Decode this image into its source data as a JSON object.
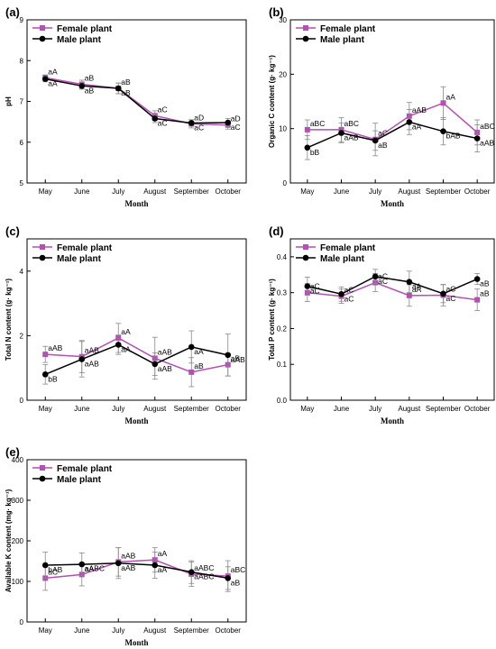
{
  "chart_data": [
    {
      "type": "line",
      "panel_label": "(a)",
      "categories": [
        "May",
        "June",
        "July",
        "August",
        "September",
        "October"
      ],
      "xlabel": "Month",
      "ylabel": "pH",
      "ylim": [
        5,
        9
      ],
      "yticks": [
        "5",
        "6",
        "7",
        "8",
        "9"
      ],
      "legend_position": "top-left",
      "series": [
        {
          "name": "Female plant",
          "color": "#b44fb4",
          "marker": "square",
          "values": [
            7.58,
            7.42,
            7.32,
            6.65,
            6.45,
            6.42
          ],
          "errors": [
            0.07,
            0.1,
            0.13,
            0.12,
            0.1,
            0.1
          ],
          "labels": [
            "aA",
            "aB",
            "aB",
            "aC",
            "aD",
            "aD"
          ]
        },
        {
          "name": "Male plant",
          "color": "#000000",
          "marker": "circle",
          "values": [
            7.55,
            7.38,
            7.32,
            6.58,
            6.47,
            6.48
          ],
          "errors": [
            0.07,
            0.08,
            0.13,
            0.1,
            0.08,
            0.1
          ],
          "labels": [
            "aA",
            "aB",
            "aB",
            "aC",
            "aC",
            "aC"
          ]
        }
      ]
    },
    {
      "type": "line",
      "panel_label": "(b)",
      "categories": [
        "May",
        "June",
        "July",
        "August",
        "September",
        "October"
      ],
      "xlabel": "Month",
      "ylabel": "Organic C content  (g· kg⁻¹)",
      "ylim": [
        0,
        30
      ],
      "yticks": [
        "0",
        "10",
        "20",
        "30"
      ],
      "legend_position": "top-left",
      "series": [
        {
          "name": "Female plant",
          "color": "#b44fb4",
          "marker": "square",
          "values": [
            9.8,
            9.8,
            8.0,
            12.3,
            14.7,
            9.3
          ],
          "errors": [
            1.8,
            2.2,
            3.0,
            2.5,
            3.0,
            2.3
          ],
          "labels": [
            "aBC",
            "aBC",
            "aC",
            "aAB",
            "aA",
            "aBC"
          ]
        },
        {
          "name": "Male plant",
          "color": "#000000",
          "marker": "circle",
          "values": [
            6.5,
            9.2,
            7.8,
            11.2,
            9.5,
            8.2
          ],
          "errors": [
            2.2,
            1.8,
            1.8,
            2.3,
            2.5,
            2.5
          ],
          "labels": [
            "bB",
            "aAB",
            "aB",
            "aA",
            "bAB",
            "aAB"
          ]
        }
      ]
    },
    {
      "type": "line",
      "panel_label": "(c)",
      "categories": [
        "May",
        "June",
        "July",
        "August",
        "September",
        "October"
      ],
      "xlabel": "Month",
      "ylabel": "Total N content  (g· kg⁻¹)",
      "ylim": [
        0,
        5
      ],
      "yticks": [
        "0",
        "2",
        "4"
      ],
      "legend_position": "top-left",
      "series": [
        {
          "name": "Female plant",
          "color": "#b44fb4",
          "marker": "square",
          "values": [
            1.42,
            1.35,
            1.93,
            1.3,
            0.87,
            1.1
          ],
          "errors": [
            0.25,
            0.5,
            0.45,
            0.65,
            0.45,
            0.35
          ],
          "labels": [
            "aAB",
            "aAB",
            "aA",
            "aAB",
            "aB",
            "aB"
          ]
        },
        {
          "name": "Male plant",
          "color": "#000000",
          "marker": "circle",
          "values": [
            0.8,
            1.27,
            1.72,
            1.12,
            1.65,
            1.4
          ],
          "errors": [
            0.3,
            0.55,
            0.3,
            0.35,
            0.5,
            0.65
          ],
          "labels": [
            "bB",
            "aAB",
            "aA",
            "aAB",
            "aA",
            "aAB"
          ]
        }
      ]
    },
    {
      "type": "line",
      "panel_label": "(d)",
      "categories": [
        "May",
        "June",
        "July",
        "August",
        "September",
        "October"
      ],
      "xlabel": "Month",
      "ylabel": "Total P content  (g· kg⁻¹)",
      "ylim": [
        0.0,
        0.45
      ],
      "yticks": [
        "0.0",
        "0.1",
        "0.2",
        "0.3",
        "0.4"
      ],
      "legend_position": "top-left",
      "series": [
        {
          "name": "Female plant",
          "color": "#b44fb4",
          "marker": "square",
          "values": [
            0.3,
            0.29,
            0.328,
            0.292,
            0.293,
            0.28
          ],
          "errors": [
            0.025,
            0.02,
            0.025,
            0.03,
            0.03,
            0.03
          ],
          "labels": [
            "aC",
            "aC",
            "aC",
            "aA",
            "aC",
            "aB"
          ]
        },
        {
          "name": "Male plant",
          "color": "#000000",
          "marker": "circle",
          "values": [
            0.318,
            0.296,
            0.345,
            0.33,
            0.297,
            0.338
          ],
          "errors": [
            0.025,
            0.02,
            0.02,
            0.03,
            0.025,
            0.015
          ],
          "labels": [
            "aC",
            "aC",
            "aC",
            "aA",
            "aC",
            "aB"
          ]
        }
      ]
    },
    {
      "type": "line",
      "panel_label": "(e)",
      "categories": [
        "May",
        "June",
        "July",
        "August",
        "September",
        "October"
      ],
      "xlabel": "Month",
      "ylabel": "Available K content  (mg· kg⁻¹)",
      "ylim": [
        0,
        400
      ],
      "yticks": [
        "0",
        "100",
        "200",
        "300",
        "400"
      ],
      "legend_position": "top-left",
      "series": [
        {
          "name": "Female plant",
          "color": "#b44fb4",
          "marker": "square",
          "values": [
            108,
            117,
            148,
            153,
            118,
            113
          ],
          "errors": [
            30,
            28,
            35,
            30,
            30,
            38
          ],
          "labels": [
            "aC",
            "aABC",
            "aAB",
            "aA",
            "aABC",
            "aBC"
          ]
        },
        {
          "name": "Male plant",
          "color": "#000000",
          "marker": "circle",
          "values": [
            140,
            142,
            145,
            140,
            123,
            108
          ],
          "errors": [
            32,
            28,
            38,
            32,
            28,
            28
          ],
          "labels": [
            "bAB",
            "aA",
            "aAB",
            "aA",
            "aABC",
            "aB"
          ]
        }
      ]
    }
  ]
}
